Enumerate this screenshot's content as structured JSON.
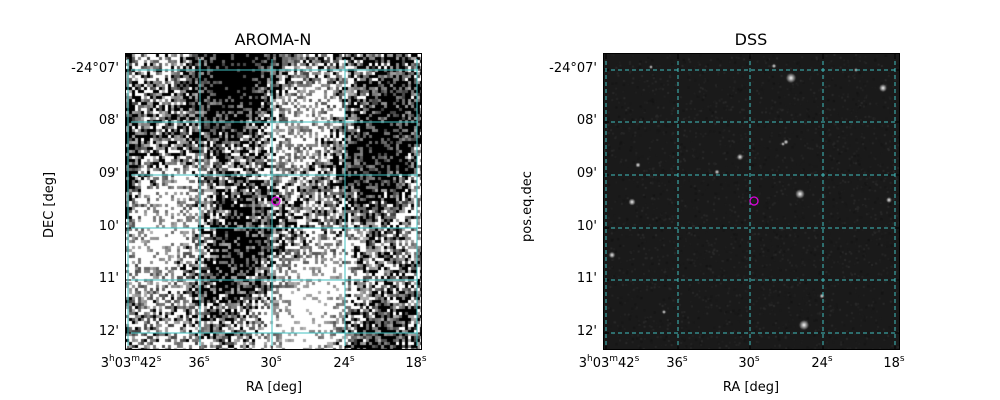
{
  "panels": [
    {
      "title": "AROMA-N",
      "ylabel": "DEC [deg]",
      "xlabel": "RA [deg]",
      "style": "noisy",
      "grid_color": "#40c0c0",
      "marker_color": "#e000e0",
      "y_ticks": [
        "-24°07'",
        "08'",
        "09'",
        "10'",
        "11'",
        "12'"
      ],
      "x_ticks": [
        {
          "h": "3",
          "m": "03",
          "s": "42"
        },
        {
          "s": "36"
        },
        {
          "s": "30"
        },
        {
          "s": "24"
        },
        {
          "s": "18"
        }
      ]
    },
    {
      "title": "DSS",
      "ylabel": "pos.eq.dec",
      "xlabel": "RA [deg]",
      "style": "dss",
      "grid_color": "#40c0c0",
      "marker_color": "#e000e0",
      "y_ticks": [
        "-24°07'",
        "08'",
        "09'",
        "10'",
        "11'",
        "12'"
      ],
      "x_ticks": [
        {
          "h": "3",
          "m": "03",
          "s": "42"
        },
        {
          "s": "36"
        },
        {
          "s": "30"
        },
        {
          "s": "24"
        },
        {
          "s": "18"
        }
      ]
    }
  ]
}
